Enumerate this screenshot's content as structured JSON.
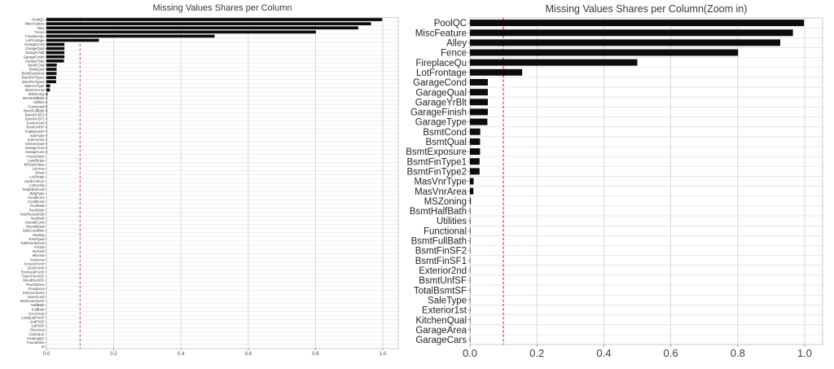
{
  "figure": {
    "background": "#ffffff",
    "bar_color": "#0c0c0c",
    "grid_color_v": "#d4d4d4",
    "grid_color_h": "#e1e1e1",
    "border_color": "#c9c9c9",
    "threshold_color": "#e73b3b",
    "tick_color": "#3d3d3d",
    "title_color": "#383838"
  },
  "chart_data": [
    {
      "type": "bar",
      "orientation": "horizontal",
      "title": "Missing Values Shares per Column",
      "xlabel": "",
      "ylabel": "",
      "legend": "none",
      "grid": true,
      "xlim": [
        0,
        1.05
      ],
      "xticks": [
        0.0,
        0.2,
        0.4,
        0.6,
        0.8,
        1.0
      ],
      "xtick_labels": [
        "0.0",
        "0.2",
        "0.4",
        "0.6",
        "0.8",
        "1.0"
      ],
      "threshold_line": 0.1,
      "categories": [
        "PoolQC",
        "MiscFeature",
        "Alley",
        "Fence",
        "FireplaceQu",
        "LotFrontage",
        "GarageCond",
        "GarageQual",
        "GarageYrBlt",
        "GarageFinish",
        "GarageType",
        "BsmtCond",
        "BsmtQual",
        "BsmtExposure",
        "BsmtFinType1",
        "BsmtFinType2",
        "MasVnrType",
        "MasVnrArea",
        "MSZoning",
        "BsmtHalfBath",
        "Utilities",
        "Functional",
        "BsmtFullBath",
        "BsmtFinSF2",
        "BsmtFinSF1",
        "Exterior2nd",
        "BsmtUnfSF",
        "TotalBsmtSF",
        "SaleType",
        "Exterior1st",
        "KitchenQual",
        "GarageArea",
        "GarageCars",
        "HouseStyle",
        "LandSlope",
        "MSSubClass",
        "LotArea",
        "Street",
        "LotShape",
        "LandContour",
        "LotConfig",
        "Neighborhood",
        "BldgType",
        "Condition1",
        "Condition2",
        "RoofMatl",
        "RoofStyle",
        "YearRemodAdd",
        "YearBuilt",
        "OverallCond",
        "OverallQual",
        "SaleCondition",
        "Heating",
        "ExterQual",
        "TotRmsAbvGrd",
        "YrSold",
        "MoSold",
        "MiscVal",
        "PoolArea",
        "ScreenPorch",
        "3SsnPorch",
        "EnclosedPorch",
        "OpenPorchSF",
        "WoodDeckSF",
        "PavedDrive",
        "Fireplaces",
        "KitchenAbvGr",
        "ExterCond",
        "BedroomAbvGr",
        "HalfBath",
        "FullBath",
        "GrLivArea",
        "LowQualFinSF",
        "2ndFlrSF",
        "1stFlrSF",
        "Electrical",
        "CentralAir",
        "HeatingQC",
        "Foundation",
        "Id"
      ],
      "values": [
        0.998,
        0.965,
        0.927,
        0.801,
        0.5,
        0.156,
        0.0535,
        0.0535,
        0.0535,
        0.0535,
        0.0521,
        0.0308,
        0.0302,
        0.0302,
        0.0288,
        0.0288,
        0.011,
        0.0103,
        0.0027,
        0.0014,
        0.0014,
        0.0014,
        0.0014,
        0.0007,
        0.0007,
        0.0007,
        0.0007,
        0.0007,
        0.0007,
        0.0007,
        0.0007,
        0.0007,
        0.0007,
        0,
        0,
        0,
        0,
        0,
        0,
        0,
        0,
        0,
        0,
        0,
        0,
        0,
        0,
        0,
        0,
        0,
        0,
        0,
        0,
        0,
        0,
        0,
        0,
        0,
        0,
        0,
        0,
        0,
        0,
        0,
        0,
        0,
        0,
        0,
        0,
        0,
        0,
        0,
        0,
        0,
        0,
        0,
        0,
        0,
        0,
        0
      ]
    },
    {
      "type": "bar",
      "orientation": "horizontal",
      "title": "Missing Values Shares per Column(Zoom in)",
      "xlabel": "",
      "ylabel": "",
      "legend": "none",
      "grid": true,
      "xlim": [
        0,
        1.05
      ],
      "xticks": [
        0.0,
        0.2,
        0.4,
        0.6,
        0.8,
        1.0
      ],
      "xtick_labels": [
        "0.0",
        "0.2",
        "0.4",
        "0.6",
        "0.8",
        "1.0"
      ],
      "threshold_line": 0.1,
      "categories": [
        "PoolQC",
        "MiscFeature",
        "Alley",
        "Fence",
        "FireplaceQu",
        "LotFrontage",
        "GarageCond",
        "GarageQual",
        "GarageYrBlt",
        "GarageFinish",
        "GarageType",
        "BsmtCond",
        "BsmtQual",
        "BsmtExposure",
        "BsmtFinType1",
        "BsmtFinType2",
        "MasVnrType",
        "MasVnrArea",
        "MSZoning",
        "BsmtHalfBath",
        "Utilities",
        "Functional",
        "BsmtFullBath",
        "BsmtFinSF2",
        "BsmtFinSF1",
        "Exterior2nd",
        "BsmtUnfSF",
        "TotalBsmtSF",
        "SaleType",
        "Exterior1st",
        "KitchenQual",
        "GarageArea",
        "GarageCars"
      ],
      "values": [
        0.998,
        0.965,
        0.927,
        0.801,
        0.5,
        0.156,
        0.0535,
        0.0535,
        0.0535,
        0.0535,
        0.0521,
        0.0308,
        0.0302,
        0.0302,
        0.0288,
        0.0288,
        0.011,
        0.0103,
        0.0027,
        0.0014,
        0.0014,
        0.0014,
        0.0014,
        0.0007,
        0.0007,
        0.0007,
        0.0007,
        0.0007,
        0.0007,
        0.0007,
        0.0007,
        0.0007,
        0.0007
      ]
    }
  ]
}
